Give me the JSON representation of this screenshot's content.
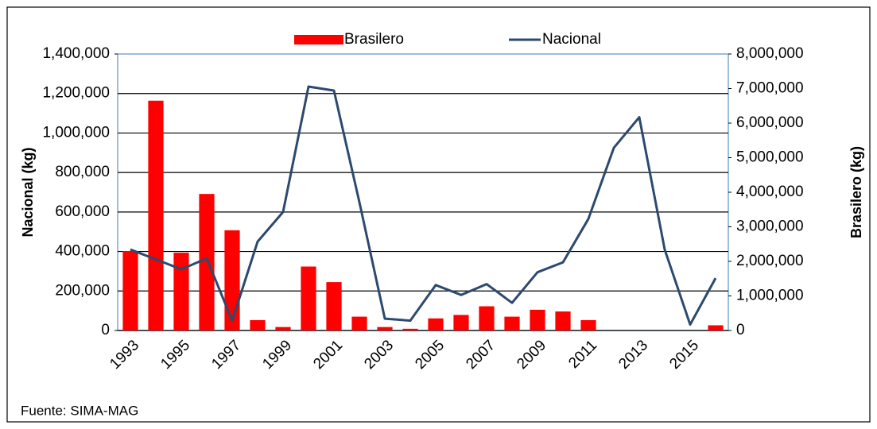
{
  "chart_data": {
    "type": "bar_line",
    "categories": [
      "1993",
      null,
      "1995",
      null,
      "1997",
      null,
      "1999",
      null,
      "2001",
      null,
      "2003",
      null,
      "2005",
      null,
      "2007",
      null,
      "2009",
      null,
      "2011",
      null,
      "2013",
      null,
      "2015",
      null
    ],
    "series": [
      {
        "name": "Brasilero",
        "type": "bar",
        "axis": "y2",
        "color": "#ff0000",
        "values": [
          2300000,
          6650000,
          2250000,
          3950000,
          2900000,
          300000,
          100000,
          1850000,
          1400000,
          400000,
          100000,
          50000,
          350000,
          450000,
          700000,
          400000,
          600000,
          550000,
          300000,
          0,
          0,
          0,
          0,
          150000
        ]
      },
      {
        "name": "Nacional",
        "type": "line",
        "axis": "y",
        "color": "#2c4a6e",
        "values": [
          410000,
          360000,
          310000,
          365000,
          50000,
          450000,
          600000,
          1235000,
          1215000,
          650000,
          60000,
          50000,
          230000,
          180000,
          235000,
          140000,
          295000,
          345000,
          565000,
          925000,
          1080000,
          410000,
          30000,
          265000
        ]
      }
    ],
    "ylabel": "Nacional (kg)",
    "y2label": "Brasilero (kg)",
    "ylim": [
      0,
      1400000
    ],
    "yticks": [
      0,
      {
        "value": 200000,
        "label": "200,000"
      },
      {
        "value": 400000,
        "label": "400,000"
      },
      {
        "value": 600000,
        "label": "600,000"
      },
      {
        "value": 800000,
        "label": "800,000"
      },
      {
        "value": 1000000,
        "label": "1,000,000"
      },
      {
        "value": 1200000,
        "label": "1,200,000"
      },
      {
        "value": 1400000,
        "label": "1,400,000"
      }
    ],
    "y2lim": [
      0,
      8000000
    ],
    "y2ticks": [
      0,
      {
        "value": 1000000,
        "label": "1,000,000"
      },
      {
        "value": 2000000,
        "label": "2,000,000"
      },
      {
        "value": 3000000,
        "label": "3,000,000"
      },
      {
        "value": 4000000,
        "label": "4,000,000"
      },
      {
        "value": 5000000,
        "label": "5,000,000"
      },
      {
        "value": 6000000,
        "label": "6,000,000"
      },
      {
        "value": 7000000,
        "label": "7,000,000"
      },
      {
        "value": 8000000,
        "label": "8,000,000"
      }
    ],
    "grid": true,
    "legend": "top",
    "source": "Fuente: SIMA-MAG"
  }
}
